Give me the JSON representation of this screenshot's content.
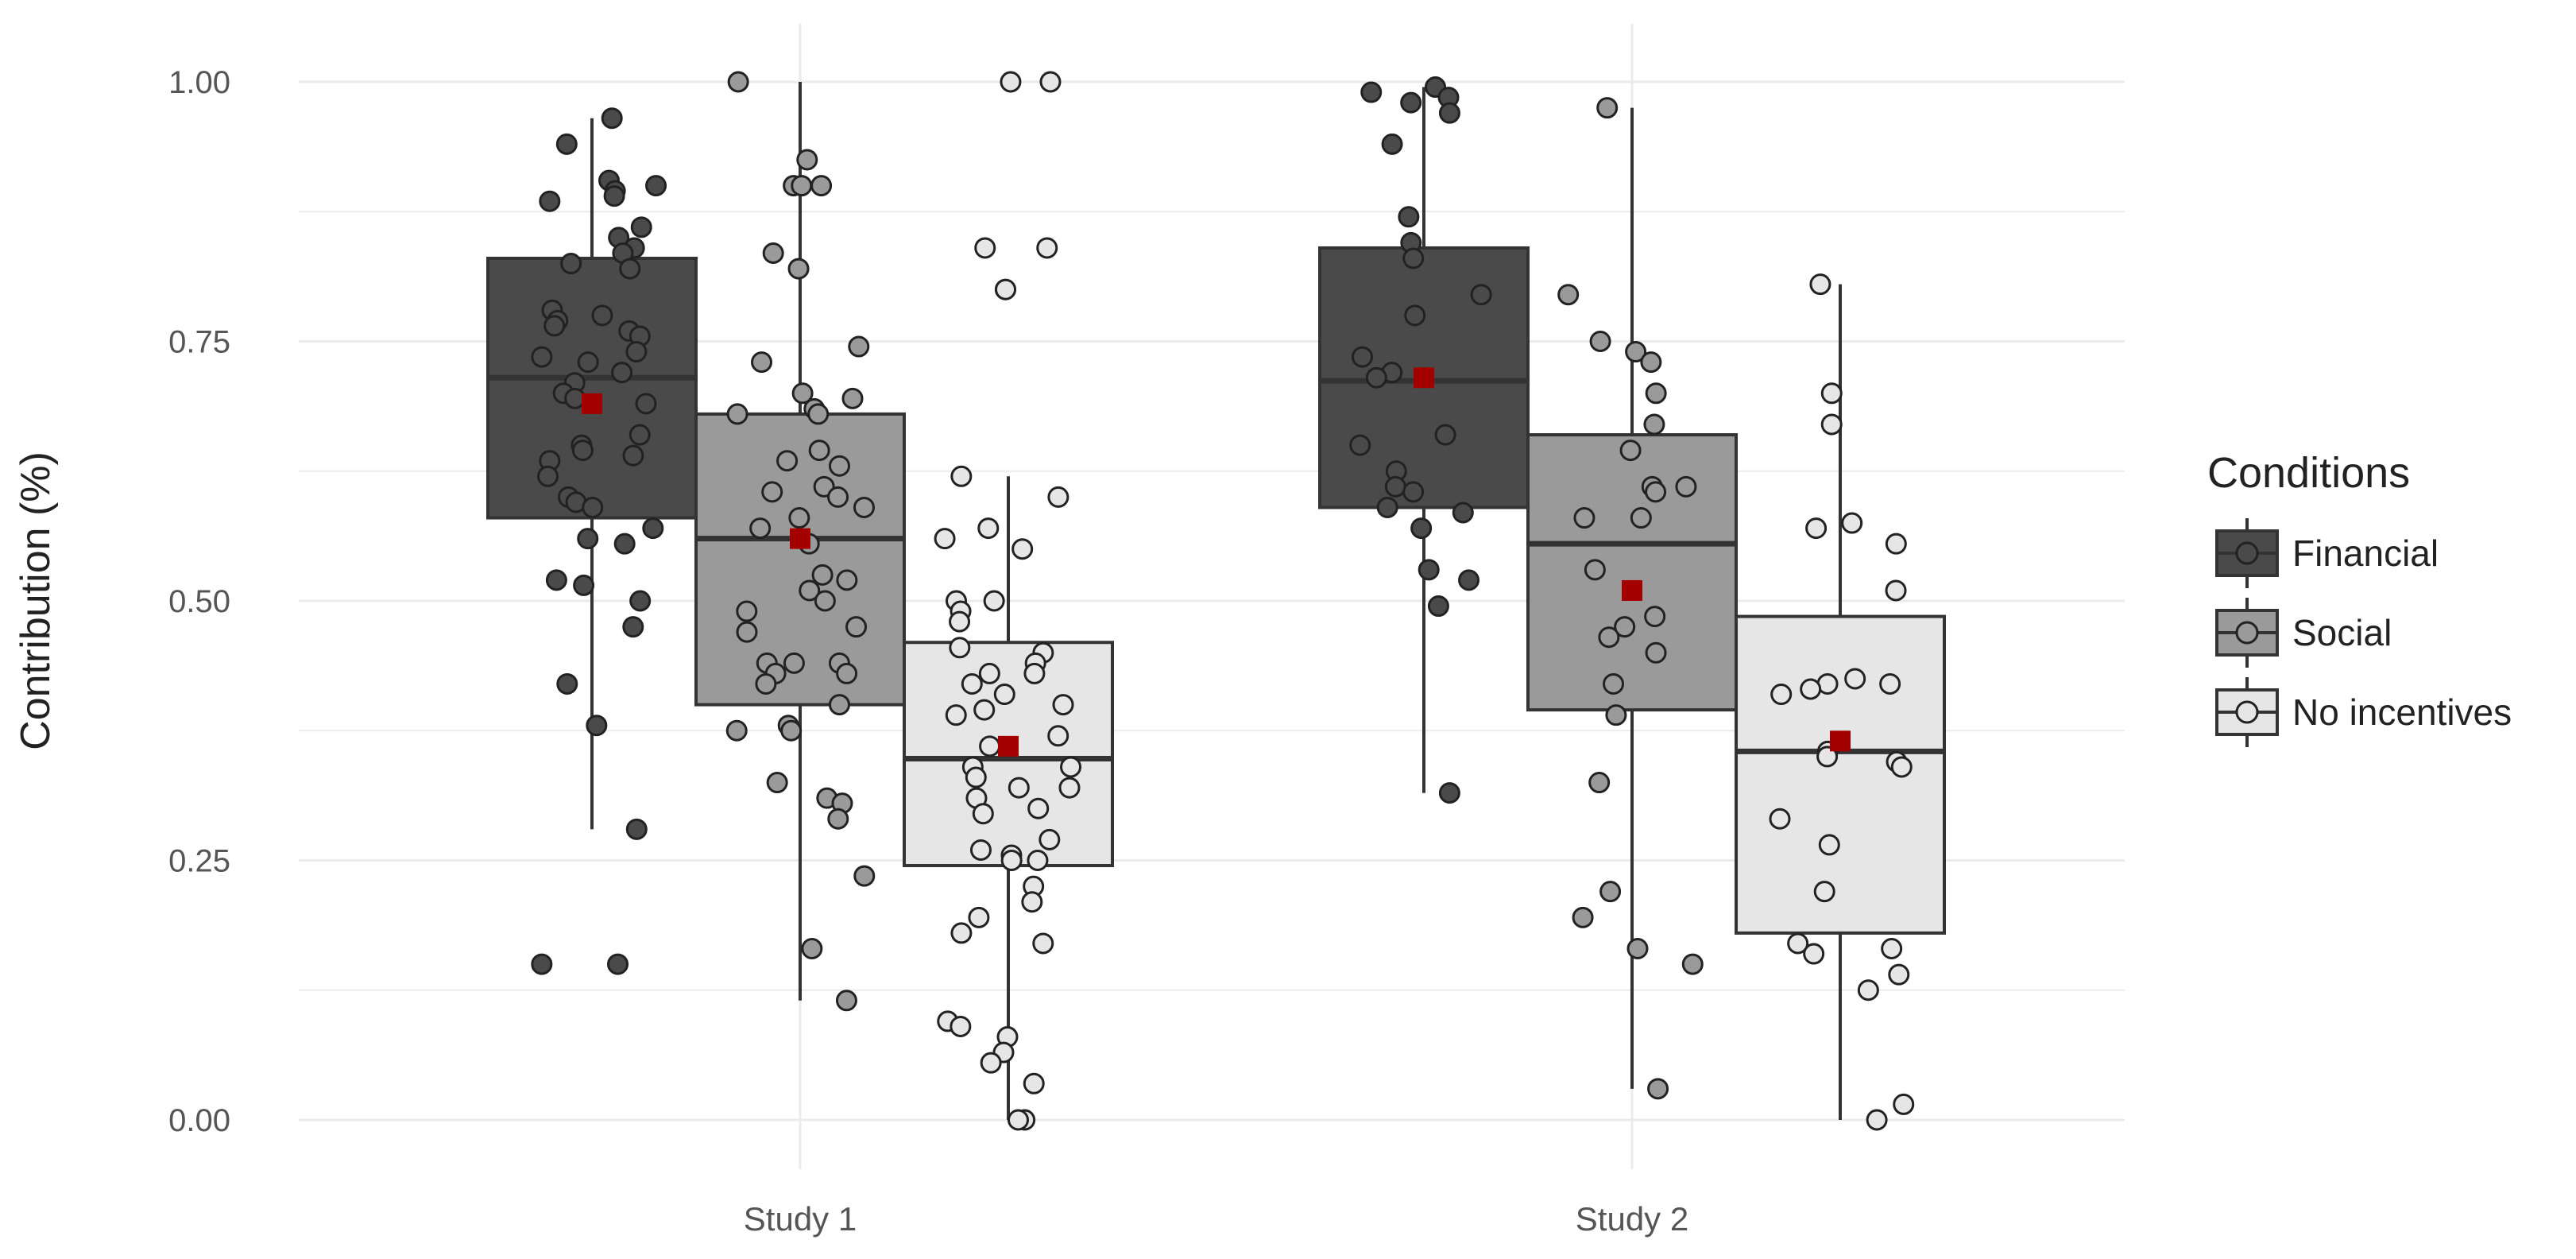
{
  "chart_data": {
    "type": "boxplot",
    "ylabel": "Contribution (%)",
    "xlabel": "",
    "categories": [
      "Study 1",
      "Study 2"
    ],
    "ylim": [
      -0.04,
      1.04
    ],
    "y_ticks": [
      0.0,
      0.25,
      0.5,
      0.75,
      1.0
    ],
    "y_tick_labels": [
      "0.00",
      "0.25",
      "0.50",
      "0.75",
      "1.00"
    ],
    "grid": true,
    "legend": {
      "title": "Conditions",
      "position": "right",
      "entries": [
        "Financial",
        "Social",
        "No incentives"
      ]
    },
    "colors": {
      "Financial": "#4a4a4a",
      "Social": "#9a9a9a",
      "No incentives": "#e6e6e6",
      "mean_marker": "#a50000",
      "grid": "#ebebeb",
      "box_stroke": "#333333"
    },
    "series": [
      {
        "name": "Financial",
        "boxes": [
          {
            "category": "Study 1",
            "whisker_low": 0.28,
            "q1": 0.58,
            "median": 0.715,
            "q3": 0.83,
            "whisker_high": 0.965,
            "mean": 0.69,
            "points": [
              0.965,
              0.94,
              0.905,
              0.9,
              0.895,
              0.89,
              0.885,
              0.86,
              0.85,
              0.84,
              0.835,
              0.825,
              0.82,
              0.78,
              0.775,
              0.77,
              0.765,
              0.76,
              0.755,
              0.74,
              0.735,
              0.73,
              0.72,
              0.71,
              0.7,
              0.695,
              0.69,
              0.66,
              0.65,
              0.645,
              0.64,
              0.635,
              0.62,
              0.6,
              0.595,
              0.59,
              0.57,
              0.56,
              0.555,
              0.52,
              0.515,
              0.5,
              0.475,
              0.42,
              0.38,
              0.28,
              0.15,
              0.15
            ]
          },
          {
            "category": "Study 2",
            "whisker_low": 0.315,
            "q1": 0.59,
            "median": 0.712,
            "q3": 0.84,
            "whisker_high": 0.995,
            "mean": 0.715,
            "points": [
              0.995,
              0.99,
              0.985,
              0.98,
              0.97,
              0.94,
              0.87,
              0.845,
              0.83,
              0.795,
              0.775,
              0.735,
              0.72,
              0.715,
              0.66,
              0.65,
              0.625,
              0.61,
              0.605,
              0.59,
              0.585,
              0.57,
              0.53,
              0.52,
              0.495,
              0.315
            ]
          }
        ]
      },
      {
        "name": "Social",
        "boxes": [
          {
            "category": "Study 1",
            "whisker_low": 0.115,
            "q1": 0.4,
            "median": 0.56,
            "q3": 0.68,
            "whisker_high": 1.0,
            "mean": 0.56,
            "points": [
              1.0,
              0.925,
              0.9,
              0.9,
              0.9,
              0.835,
              0.82,
              0.745,
              0.73,
              0.7,
              0.695,
              0.685,
              0.68,
              0.68,
              0.645,
              0.635,
              0.63,
              0.61,
              0.605,
              0.6,
              0.59,
              0.58,
              0.57,
              0.555,
              0.525,
              0.52,
              0.51,
              0.5,
              0.49,
              0.475,
              0.47,
              0.44,
              0.44,
              0.44,
              0.43,
              0.43,
              0.42,
              0.4,
              0.38,
              0.375,
              0.375,
              0.325,
              0.31,
              0.305,
              0.29,
              0.235,
              0.165,
              0.115
            ]
          },
          {
            "category": "Study 2",
            "whisker_low": 0.03,
            "q1": 0.395,
            "median": 0.555,
            "q3": 0.66,
            "whisker_high": 0.975,
            "mean": 0.51,
            "points": [
              0.975,
              0.795,
              0.75,
              0.74,
              0.73,
              0.7,
              0.67,
              0.645,
              0.61,
              0.61,
              0.605,
              0.58,
              0.58,
              0.53,
              0.485,
              0.475,
              0.465,
              0.45,
              0.42,
              0.39,
              0.325,
              0.22,
              0.195,
              0.165,
              0.15,
              0.03
            ]
          }
        ]
      },
      {
        "name": "No incentives",
        "boxes": [
          {
            "category": "Study 1",
            "whisker_low": 0.0,
            "q1": 0.245,
            "median": 0.348,
            "q3": 0.46,
            "whisker_high": 0.62,
            "mean": 0.36,
            "points": [
              1.0,
              1.0,
              0.84,
              0.84,
              0.8,
              0.8,
              0.62,
              0.6,
              0.57,
              0.56,
              0.55,
              0.5,
              0.5,
              0.49,
              0.48,
              0.455,
              0.45,
              0.44,
              0.43,
              0.43,
              0.42,
              0.41,
              0.4,
              0.395,
              0.39,
              0.37,
              0.36,
              0.34,
              0.34,
              0.33,
              0.32,
              0.32,
              0.31,
              0.3,
              0.295,
              0.27,
              0.26,
              0.255,
              0.25,
              0.25,
              0.225,
              0.21,
              0.195,
              0.18,
              0.17,
              0.095,
              0.09,
              0.08,
              0.065,
              0.055,
              0.035,
              0.0,
              0.0
            ]
          },
          {
            "category": "Study 2",
            "whisker_low": 0.0,
            "q1": 0.18,
            "median": 0.355,
            "q3": 0.485,
            "whisker_high": 0.805,
            "mean": 0.365,
            "points": [
              0.805,
              0.7,
              0.67,
              0.575,
              0.57,
              0.555,
              0.51,
              0.425,
              0.42,
              0.42,
              0.415,
              0.41,
              0.355,
              0.35,
              0.345,
              0.34,
              0.29,
              0.265,
              0.22,
              0.17,
              0.165,
              0.16,
              0.14,
              0.125,
              0.015,
              0.0
            ]
          }
        ]
      }
    ]
  }
}
